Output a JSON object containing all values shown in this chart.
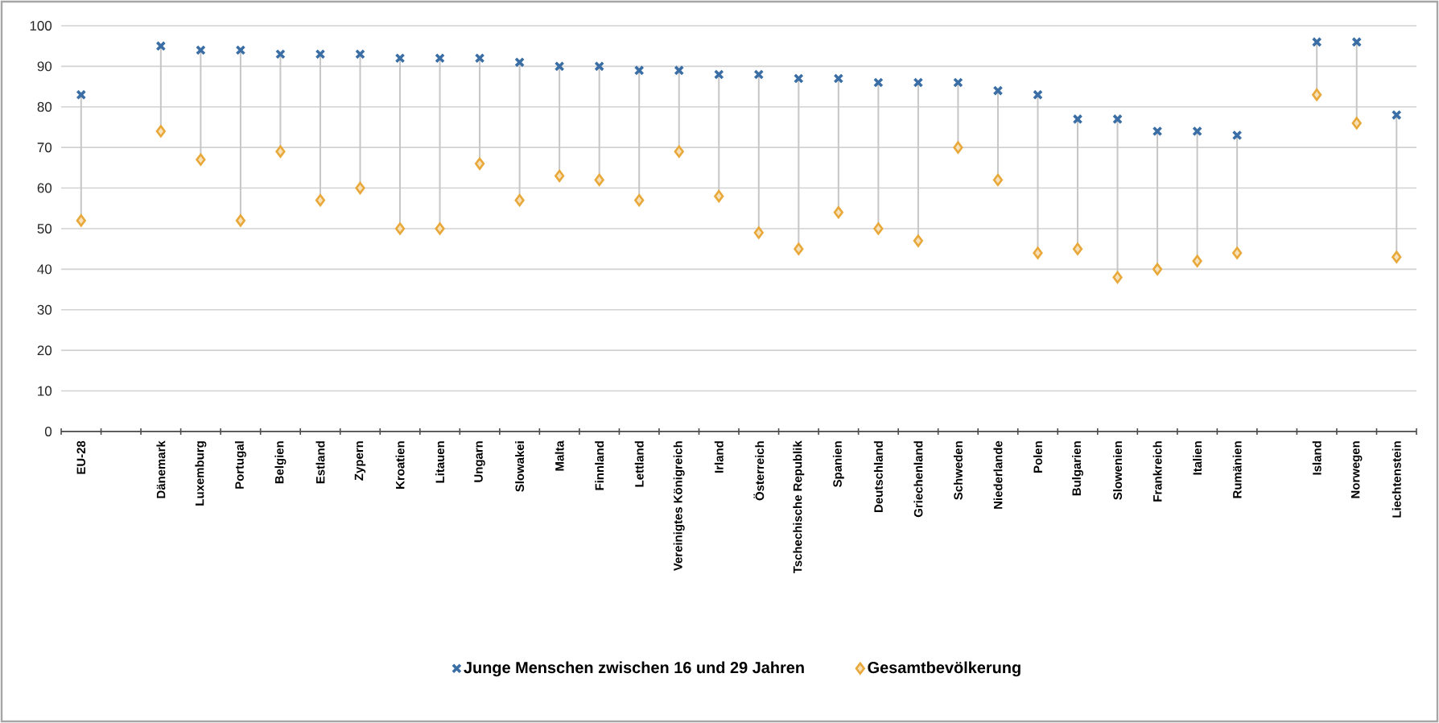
{
  "chart_data": {
    "type": "scatter",
    "categories": [
      "EU-28",
      null,
      "Dänemark",
      "Luxemburg",
      "Portugal",
      "Belgien",
      "Estland",
      "Zypern",
      "Kroatien",
      "Litauen",
      "Ungarn",
      "Slowakei",
      "Malta",
      "Finnland",
      "Lettland",
      "Vereinigtes Königreich",
      "Irland",
      "Österreich",
      "Tschechische Republik",
      "Spanien",
      "Deutschland",
      "Griechenland",
      "Schweden",
      "Niederlande",
      "Polen",
      "Bulgarien",
      "Slowenien",
      "Frankreich",
      "Italien",
      "Rumänien",
      null,
      "Island",
      "Norwegen",
      "Liechtenstein"
    ],
    "series": [
      {
        "name": "Junge Menschen zwischen 16 und 29 Jahren",
        "color": "#3a6ea5",
        "marker": "cross",
        "values": [
          83,
          null,
          95,
          94,
          94,
          93,
          93,
          93,
          92,
          92,
          92,
          91,
          90,
          90,
          89,
          89,
          88,
          88,
          87,
          87,
          86,
          86,
          86,
          84,
          83,
          77,
          77,
          74,
          74,
          73,
          null,
          96,
          96,
          78
        ]
      },
      {
        "name": "Gesamtbevölkerung",
        "color": "#e8a83a",
        "marker": "diamond",
        "values": [
          52,
          null,
          74,
          67,
          52,
          69,
          57,
          60,
          50,
          50,
          66,
          57,
          63,
          62,
          57,
          69,
          58,
          49,
          45,
          54,
          50,
          47,
          70,
          62,
          44,
          45,
          38,
          40,
          42,
          44,
          null,
          83,
          76,
          43
        ]
      }
    ],
    "ylim": [
      0,
      100
    ],
    "yticks": [
      0,
      10,
      20,
      30,
      40,
      50,
      60,
      70,
      80,
      90,
      100
    ],
    "grid": "y",
    "legend": "bottom"
  }
}
